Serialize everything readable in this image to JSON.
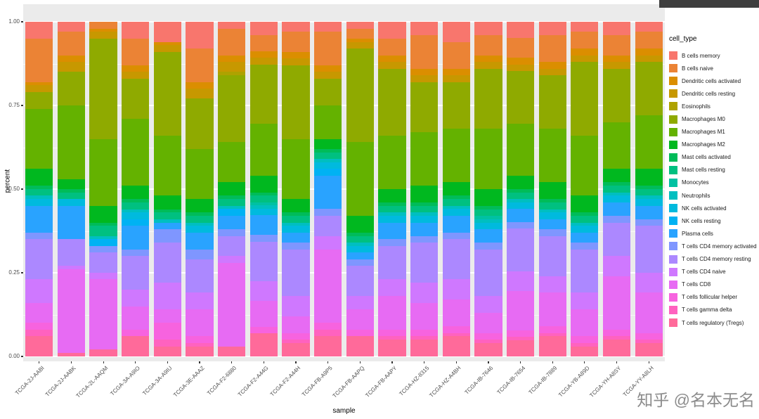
{
  "figure": {
    "y_axis_title": "percent",
    "x_axis_title": "sample",
    "legend_title": "cell_type",
    "watermark": "知乎 @名本无名"
  },
  "chart_data": {
    "type": "bar",
    "stacked": true,
    "normalized": true,
    "title": "",
    "xlabel": "sample",
    "ylabel": "percent",
    "ylim": [
      0,
      1
    ],
    "grid": true,
    "legend_position": "right",
    "legend_title": "cell_type",
    "panel_bg": "#EBEBEB",
    "grid_color": "#FFFFFF",
    "axis_text_color": "#4D4D4D",
    "watermark_color": "#8C8C8C",
    "yticks": [
      {
        "v": 0.0,
        "label": "0.00"
      },
      {
        "v": 0.25,
        "label": "0.25"
      },
      {
        "v": 0.5,
        "label": "0.50"
      },
      {
        "v": 0.75,
        "label": "0.75"
      },
      {
        "v": 1.0,
        "label": "1.00"
      }
    ],
    "y_minor": [
      0.125,
      0.375,
      0.625,
      0.875
    ],
    "categories": [
      "TCGA-2J-AABI",
      "TCGA-2J-AABK",
      "TCGA-2L-AAQM",
      "TCGA-3A-A9IO",
      "TCGA-3A-A9IU",
      "TCGA-3E-AAAZ",
      "TCGA-F2-6880",
      "TCGA-F2-A44G",
      "TCGA-F2-A44H",
      "TCGA-FB-A9P5",
      "TCGA-FB-AAPQ",
      "TCGA-FB-AAPY",
      "TCGA-HZ-8315",
      "TCGA-HZ-A4BH",
      "TCGA-IB-7646",
      "TCGA-IB-7654",
      "TCGA-IB-7889",
      "TCGA-YB-A89D",
      "TCGA-YH-A8SY",
      "TCGA-YY-A8LH"
    ],
    "series": [
      {
        "name": "B cells memory",
        "color": "#F8766D",
        "values": [
          0.05,
          0.03,
          0.0,
          0.05,
          0.06,
          0.08,
          0.02,
          0.04,
          0.03,
          0.03,
          0.02,
          0.05,
          0.04,
          0.06,
          0.04,
          0.05,
          0.04,
          0.03,
          0.04,
          0.03
        ]
      },
      {
        "name": "B cells naive",
        "color": "#EB8335",
        "values": [
          0.13,
          0.07,
          0.02,
          0.08,
          0.0,
          0.1,
          0.08,
          0.05,
          0.06,
          0.1,
          0.03,
          0.05,
          0.1,
          0.08,
          0.06,
          0.06,
          0.08,
          0.05,
          0.06,
          0.05
        ]
      },
      {
        "name": "Dendritic cells activated",
        "color": "#DB8E00",
        "values": [
          0.01,
          0.02,
          0.01,
          0.02,
          0.01,
          0.02,
          0.02,
          0.02,
          0.02,
          0.02,
          0.01,
          0.02,
          0.02,
          0.02,
          0.02,
          0.02,
          0.02,
          0.02,
          0.02,
          0.02
        ]
      },
      {
        "name": "Dendritic cells resting",
        "color": "#C79800",
        "values": [
          0.02,
          0.03,
          0.02,
          0.02,
          0.02,
          0.03,
          0.03,
          0.02,
          0.02,
          0.02,
          0.02,
          0.02,
          0.02,
          0.02,
          0.02,
          0.02,
          0.02,
          0.02,
          0.02,
          0.02
        ]
      },
      {
        "name": "Eosinophils",
        "color": "#AEA200",
        "values": [
          0.0,
          0.0,
          0.0,
          0.0,
          0.0,
          0.0,
          0.01,
          0.0,
          0.0,
          0.0,
          0.0,
          0.0,
          0.0,
          0.0,
          0.0,
          0.0,
          0.0,
          0.0,
          0.0,
          0.0
        ]
      },
      {
        "name": "Macrophages M0",
        "color": "#8FAA00",
        "values": [
          0.05,
          0.1,
          0.3,
          0.12,
          0.25,
          0.15,
          0.2,
          0.18,
          0.22,
          0.08,
          0.28,
          0.2,
          0.15,
          0.14,
          0.18,
          0.16,
          0.16,
          0.22,
          0.16,
          0.16
        ]
      },
      {
        "name": "Macrophages M1",
        "color": "#64B200",
        "values": [
          0.18,
          0.22,
          0.2,
          0.2,
          0.18,
          0.15,
          0.12,
          0.16,
          0.18,
          0.1,
          0.22,
          0.16,
          0.16,
          0.16,
          0.18,
          0.16,
          0.16,
          0.18,
          0.14,
          0.16
        ]
      },
      {
        "name": "Macrophages M2",
        "color": "#00B81F",
        "values": [
          0.05,
          0.03,
          0.05,
          0.04,
          0.04,
          0.04,
          0.04,
          0.05,
          0.04,
          0.03,
          0.05,
          0.04,
          0.05,
          0.04,
          0.05,
          0.04,
          0.05,
          0.05,
          0.04,
          0.05
        ]
      },
      {
        "name": "Mast cells activated",
        "color": "#00BC59",
        "values": [
          0.01,
          0.01,
          0.01,
          0.01,
          0.01,
          0.01,
          0.01,
          0.01,
          0.01,
          0.01,
          0.01,
          0.01,
          0.01,
          0.01,
          0.01,
          0.01,
          0.01,
          0.01,
          0.01,
          0.01
        ]
      },
      {
        "name": "Mast cells resting",
        "color": "#00C080",
        "values": [
          0.02,
          0.02,
          0.03,
          0.02,
          0.02,
          0.02,
          0.02,
          0.02,
          0.02,
          0.02,
          0.02,
          0.02,
          0.02,
          0.02,
          0.02,
          0.02,
          0.02,
          0.02,
          0.02,
          0.02
        ]
      },
      {
        "name": "Monocytes",
        "color": "#00C1A2",
        "values": [
          0.0,
          0.0,
          0.0,
          0.0,
          0.0,
          0.0,
          0.0,
          0.01,
          0.0,
          0.0,
          0.0,
          0.0,
          0.0,
          0.0,
          0.01,
          0.0,
          0.0,
          0.0,
          0.0,
          0.0
        ]
      },
      {
        "name": "Neutrophils",
        "color": "#00BFC0",
        "values": [
          0.01,
          0.0,
          0.01,
          0.01,
          0.01,
          0.01,
          0.01,
          0.01,
          0.01,
          0.01,
          0.01,
          0.01,
          0.01,
          0.01,
          0.01,
          0.01,
          0.01,
          0.01,
          0.01,
          0.01
        ]
      },
      {
        "name": "NK cells activated",
        "color": "#00BADE",
        "values": [
          0.02,
          0.02,
          0.0,
          0.02,
          0.0,
          0.02,
          0.0,
          0.02,
          0.02,
          0.02,
          0.02,
          0.02,
          0.02,
          0.02,
          0.02,
          0.02,
          0.02,
          0.02,
          0.02,
          0.02
        ]
      },
      {
        "name": "NK cells resting",
        "color": "#00B2F3",
        "values": [
          0.0,
          0.0,
          0.02,
          0.02,
          0.0,
          0.0,
          0.02,
          0.0,
          0.0,
          0.02,
          0.0,
          0.0,
          0.0,
          0.0,
          0.0,
          0.0,
          0.0,
          0.0,
          0.0,
          0.0
        ]
      },
      {
        "name": "Plasma cells",
        "color": "#29A3FF",
        "values": [
          0.08,
          0.1,
          0.0,
          0.07,
          0.02,
          0.05,
          0.04,
          0.06,
          0.03,
          0.1,
          0.02,
          0.05,
          0.04,
          0.05,
          0.04,
          0.04,
          0.03,
          0.03,
          0.04,
          0.04
        ]
      },
      {
        "name": "T cells CD4 memory activated",
        "color": "#7F96FF",
        "values": [
          0.02,
          0.0,
          0.02,
          0.02,
          0.04,
          0.03,
          0.02,
          0.02,
          0.02,
          0.02,
          0.02,
          0.02,
          0.02,
          0.02,
          0.02,
          0.02,
          0.02,
          0.02,
          0.02,
          0.02
        ]
      },
      {
        "name": "T cells CD4 memory resting",
        "color": "#AC88FF",
        "values": [
          0.12,
          0.08,
          0.06,
          0.1,
          0.12,
          0.1,
          0.06,
          0.12,
          0.14,
          0.06,
          0.09,
          0.1,
          0.12,
          0.12,
          0.14,
          0.13,
          0.12,
          0.13,
          0.1,
          0.14
        ]
      },
      {
        "name": "T cells CD4 naive",
        "color": "#CF78FF",
        "values": [
          0.07,
          0.01,
          0.02,
          0.05,
          0.08,
          0.05,
          0.02,
          0.06,
          0.06,
          0.04,
          0.04,
          0.05,
          0.06,
          0.06,
          0.05,
          0.06,
          0.05,
          0.05,
          0.06,
          0.06
        ]
      },
      {
        "name": "T cells CD8",
        "color": "#E76BF3",
        "values": [
          0.06,
          0.25,
          0.21,
          0.07,
          0.04,
          0.08,
          0.25,
          0.08,
          0.05,
          0.22,
          0.06,
          0.1,
          0.08,
          0.08,
          0.06,
          0.12,
          0.1,
          0.08,
          0.16,
          0.12
        ]
      },
      {
        "name": "T cells follicular helper",
        "color": "#F763DF",
        "values": [
          0.02,
          0.0,
          0.0,
          0.02,
          0.05,
          0.02,
          0.0,
          0.02,
          0.02,
          0.02,
          0.02,
          0.02,
          0.02,
          0.02,
          0.02,
          0.02,
          0.02,
          0.02,
          0.02,
          0.02
        ]
      },
      {
        "name": "T cells gamma delta",
        "color": "#FF62BF",
        "values": [
          0.02,
          0.0,
          0.0,
          0.0,
          0.02,
          0.01,
          0.0,
          0.0,
          0.01,
          0.02,
          0.0,
          0.01,
          0.01,
          0.01,
          0.01,
          0.01,
          0.01,
          0.01,
          0.01,
          0.01
        ]
      },
      {
        "name": "T cells regulatory (Tregs)",
        "color": "#FF6A9A",
        "values": [
          0.06,
          0.01,
          0.02,
          0.06,
          0.03,
          0.03,
          0.03,
          0.07,
          0.04,
          0.06,
          0.06,
          0.05,
          0.05,
          0.06,
          0.04,
          0.05,
          0.06,
          0.03,
          0.05,
          0.04
        ]
      }
    ]
  }
}
